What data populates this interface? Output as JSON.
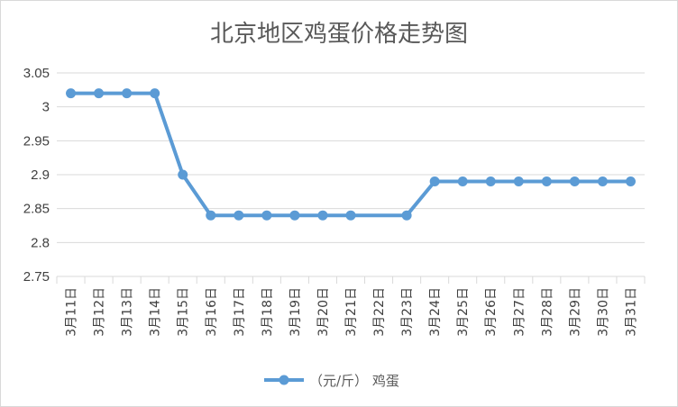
{
  "chart_data": {
    "type": "line",
    "title": "北京地区鸡蛋价格走势图",
    "xlabel": "",
    "ylabel": "",
    "ylim": [
      2.75,
      3.05
    ],
    "yticks": [
      "3.05",
      "3",
      "2.95",
      "2.9",
      "2.85",
      "2.8",
      "2.75"
    ],
    "grid": true,
    "legend_position": "bottom",
    "categories": [
      "3月11日",
      "3月12日",
      "3月13日",
      "3月14日",
      "3月15日",
      "3月16日",
      "3月17日",
      "3月18日",
      "3月19日",
      "3月20日",
      "3月21日",
      "3月22日",
      "3月23日",
      "3月24日",
      "3月25日",
      "3月26日",
      "3月27日",
      "3月28日",
      "3月29日",
      "3月30日",
      "3月31日"
    ],
    "series": [
      {
        "name": "（元/斤） 鸡蛋",
        "color": "#5b9bd5",
        "values": [
          3.02,
          3.02,
          3.02,
          3.02,
          2.9,
          2.84,
          2.84,
          2.84,
          2.84,
          2.84,
          2.84,
          null,
          2.84,
          2.89,
          2.89,
          2.89,
          2.89,
          2.89,
          2.89,
          2.89,
          2.89
        ]
      }
    ]
  }
}
